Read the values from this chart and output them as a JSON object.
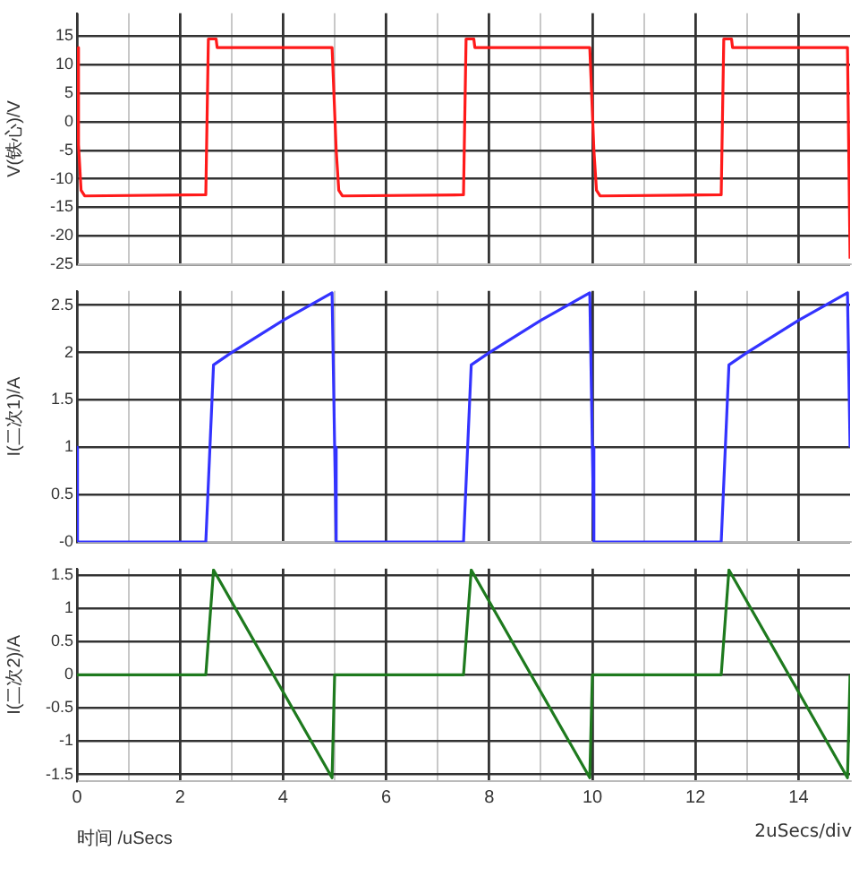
{
  "chart_data": [
    {
      "type": "line",
      "ylabel": "V(铁心)/V",
      "xlim": [
        0,
        15
      ],
      "xticks": [
        0,
        {
          "value": 1,
          "label": null
        },
        2,
        {
          "value": 3,
          "label": null
        },
        4,
        {
          "value": 5,
          "label": null
        },
        6,
        {
          "value": 7,
          "label": null
        },
        8,
        {
          "value": 9,
          "label": null
        },
        10,
        {
          "value": 11,
          "label": null
        },
        12,
        {
          "value": 13,
          "label": null
        },
        14
      ],
      "ylim": [
        -25,
        19
      ],
      "yticks": [
        -25,
        -20,
        -15,
        -10,
        -5,
        0,
        5,
        10,
        15
      ],
      "grid": true,
      "tick_labels": "y",
      "series": [
        {
          "color": "#ff1a1a",
          "x": [
            0,
            0.03,
            0.08,
            0.15,
            2.5,
            2.52,
            2.55,
            2.7,
            2.72,
            4.95,
            5.0,
            5.03,
            5.08,
            5.15,
            7.5,
            7.52,
            7.55,
            7.7,
            7.72,
            9.95,
            10.0,
            10.03,
            10.08,
            10.15,
            12.5,
            12.52,
            12.55,
            12.7,
            12.72,
            14.95,
            15.0
          ],
          "values": [
            13,
            -4,
            -12,
            -13,
            -12.8,
            null,
            14.5,
            14.5,
            13,
            13,
            null,
            -5,
            -12,
            -13,
            -12.8,
            null,
            14.5,
            14.5,
            13,
            13,
            null,
            -5,
            -12,
            -13,
            -12.8,
            null,
            14.5,
            14.5,
            13,
            13,
            -24
          ]
        }
      ]
    },
    {
      "type": "line",
      "ylabel": "I(二次1)/A",
      "xlim": [
        0,
        15
      ],
      "xticks": [
        0,
        {
          "value": 1,
          "label": null
        },
        2,
        {
          "value": 3,
          "label": null
        },
        4,
        {
          "value": 5,
          "label": null
        },
        6,
        {
          "value": 7,
          "label": null
        },
        8,
        {
          "value": 9,
          "label": null
        },
        10,
        {
          "value": 11,
          "label": null
        },
        12,
        {
          "value": 13,
          "label": null
        },
        14
      ],
      "ylim": [
        0,
        2.65
      ],
      "yticks": [
        {
          "value": 0,
          "label": "-0"
        },
        0.5,
        1,
        1.5,
        2,
        2.5
      ],
      "grid": true,
      "tick_labels": "y",
      "series": [
        {
          "color": "#3333ff",
          "x": [
            0,
            0.01,
            2.5,
            2.65,
            3.0,
            4.0,
            4.95,
            5.0,
            5.03,
            7.5,
            7.65,
            8.0,
            9.0,
            9.95,
            10.0,
            10.03,
            12.5,
            12.65,
            13.0,
            14.0,
            14.95,
            15.0
          ],
          "values": [
            1,
            0,
            0,
            1.87,
            2.0,
            2.34,
            2.63,
            1,
            0,
            0,
            1.87,
            2.0,
            2.34,
            2.63,
            1,
            0,
            0,
            1.87,
            2.0,
            2.34,
            2.63,
            1
          ]
        }
      ]
    },
    {
      "type": "line",
      "ylabel": "I(二次2)/A",
      "xlabel": "时间 /uSecs",
      "annotations": [
        "2uSecs/div"
      ],
      "xlim": [
        0,
        15
      ],
      "xticks": [
        0,
        {
          "value": 1,
          "label": null
        },
        2,
        {
          "value": 3,
          "label": null
        },
        4,
        {
          "value": 5,
          "label": null
        },
        6,
        {
          "value": 7,
          "label": null
        },
        8,
        {
          "value": 9,
          "label": null
        },
        10,
        {
          "value": 11,
          "label": null
        },
        12,
        {
          "value": 13,
          "label": null
        },
        14
      ],
      "ylim": [
        -1.6,
        1.6
      ],
      "yticks": [
        -1.5,
        -1,
        -0.5,
        0,
        0.5,
        1,
        1.5
      ],
      "grid": true,
      "series": [
        {
          "color": "#1e7a1e",
          "x": [
            0,
            2.5,
            2.65,
            4.95,
            5.0,
            7.5,
            7.65,
            9.95,
            10.0,
            12.5,
            12.65,
            14.95,
            15.0
          ],
          "values": [
            0,
            0,
            1.58,
            -1.55,
            0,
            0,
            1.58,
            -1.55,
            0,
            0,
            1.58,
            -1.55,
            0
          ]
        }
      ]
    }
  ]
}
